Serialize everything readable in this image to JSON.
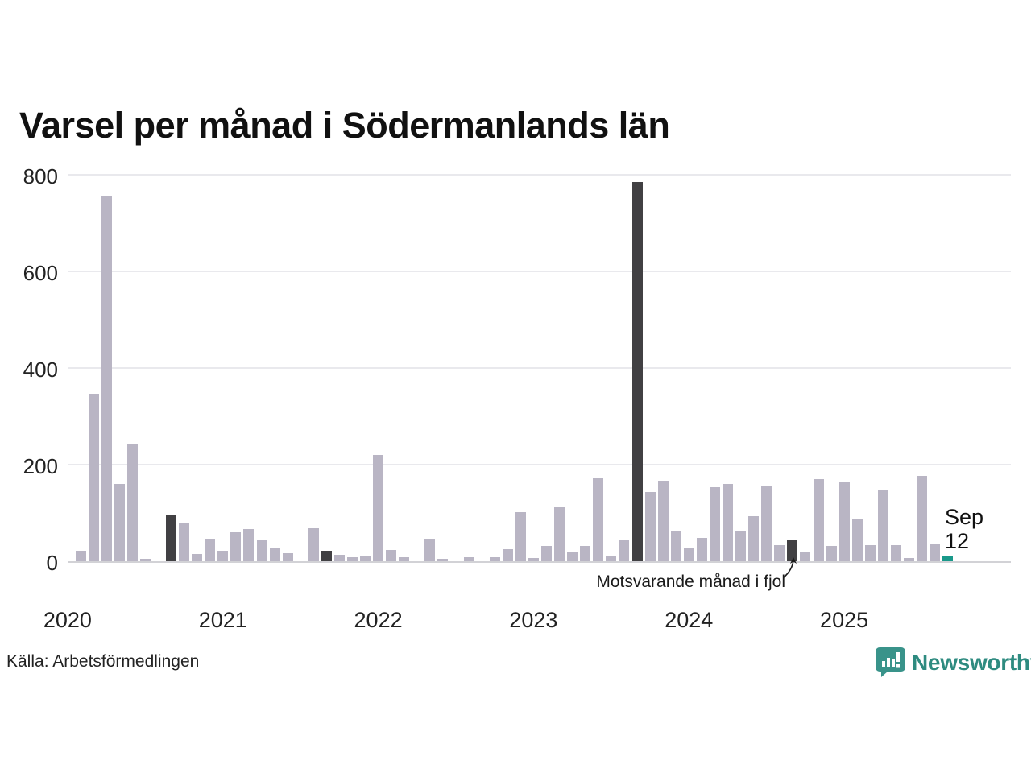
{
  "title": "Varsel per månad i Södermanlands län",
  "chart_data": {
    "type": "bar",
    "title": "Varsel per månad i Södermanlands län",
    "xlabel": "",
    "ylabel": "",
    "ylim": [
      0,
      800
    ],
    "yticks": [
      0,
      200,
      400,
      600,
      800
    ],
    "grid": "horizontal",
    "start_month": "2020-01",
    "year_labels": [
      "2020",
      "2021",
      "2022",
      "2023",
      "2024",
      "2025"
    ],
    "values": [
      0,
      22,
      347,
      755,
      160,
      243,
      5,
      0,
      95,
      78,
      15,
      46,
      21,
      60,
      67,
      43,
      28,
      16,
      0,
      68,
      22,
      13,
      8,
      12,
      220,
      23,
      9,
      0,
      47,
      5,
      0,
      8,
      0,
      8,
      25,
      101,
      7,
      32,
      111,
      20,
      31,
      171,
      10,
      43,
      785,
      143,
      167,
      64,
      26,
      49,
      153,
      160,
      62,
      93,
      155,
      33,
      43,
      20,
      170,
      31,
      163,
      88,
      33,
      146,
      33,
      7,
      177,
      35,
      12
    ],
    "september_fjol_indices": [
      8,
      20,
      32,
      44,
      56
    ],
    "current_month_index": 68,
    "annotation": "Motsvarande månad i fjol",
    "last_label": {
      "line1": "Sep",
      "line2": "12"
    }
  },
  "colors": {
    "bar_normal": "#b9b5c4",
    "bar_fjol": "#414043",
    "bar_current": "#19998a",
    "grid": "#e9e9ed",
    "axis": "#d2d2d6",
    "logo_teal": "#39938a",
    "brand_text": "#2e8b80"
  },
  "footer": {
    "source": "Källa: Arbetsförmedlingen",
    "brand": "Newsworthy"
  }
}
